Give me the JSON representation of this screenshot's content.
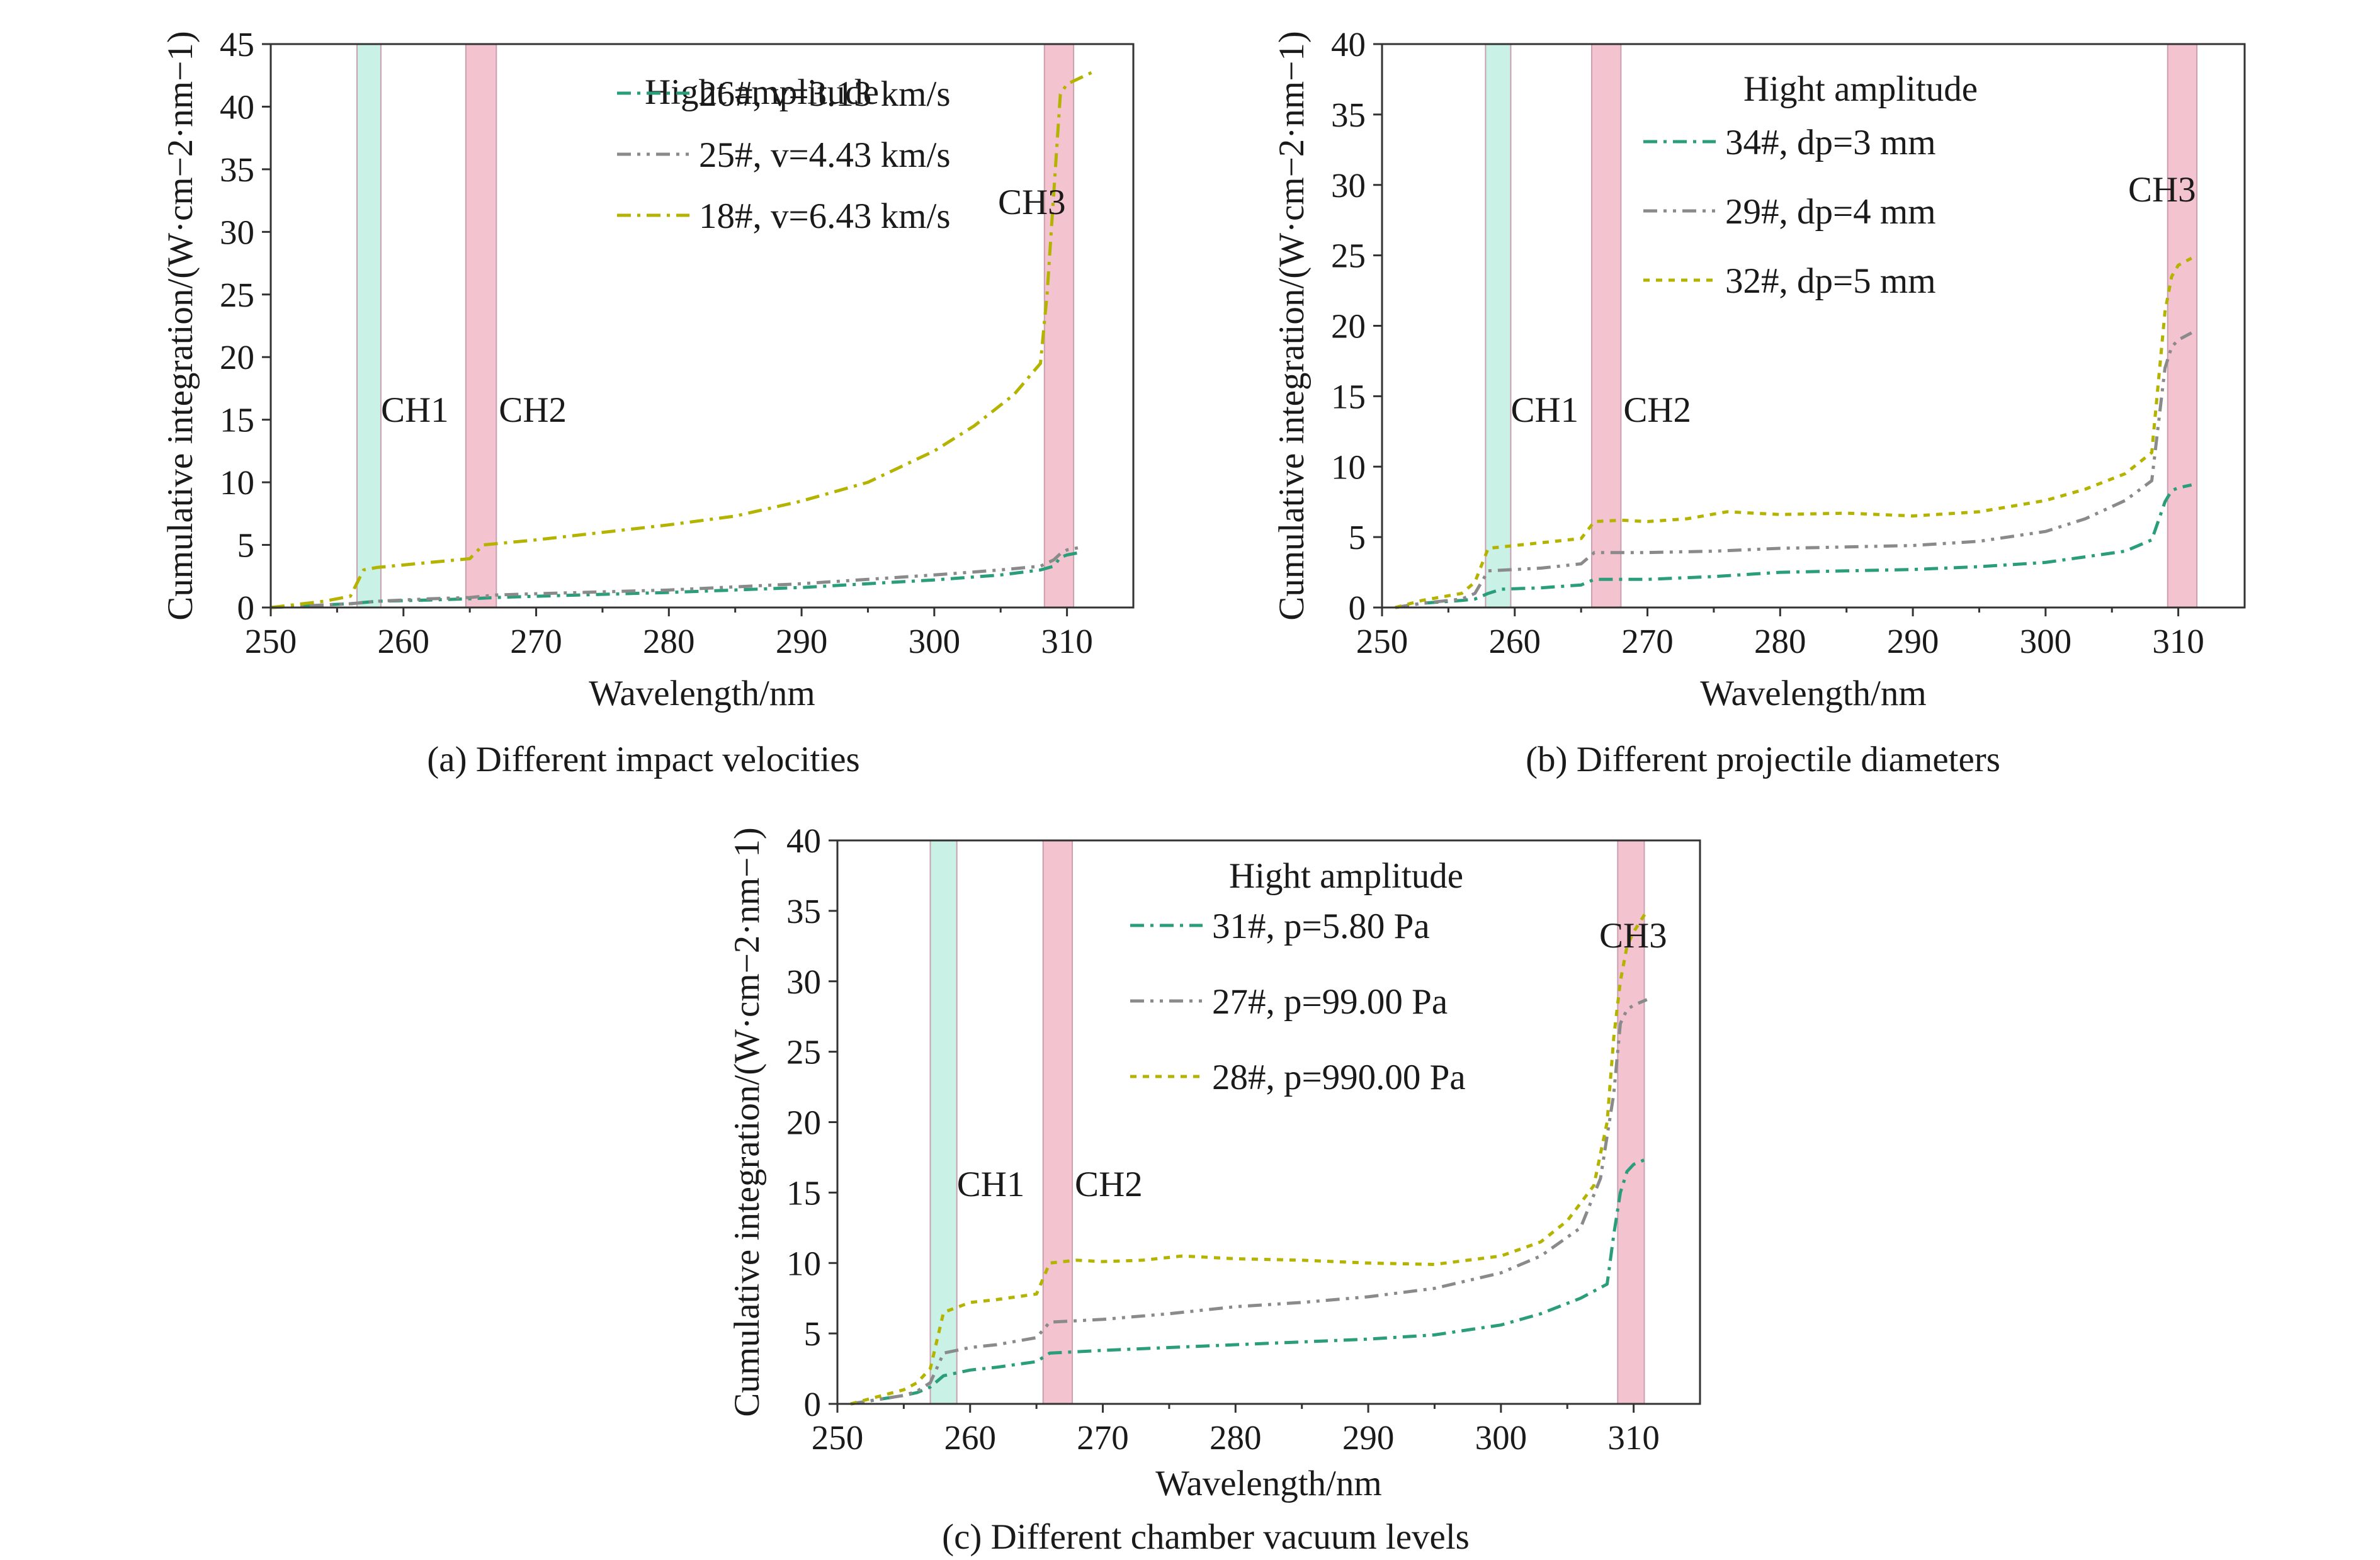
{
  "chart_data": [
    {
      "type": "line",
      "panel": "a",
      "caption": "(a) Different impact velocities",
      "xlabel": "Wavelength/nm",
      "ylabel": "Cumulative integration/(W·cm−2·nm−1)",
      "xlim": [
        250,
        315
      ],
      "ylim": [
        0,
        45
      ],
      "xticks": [
        250,
        260,
        270,
        280,
        290,
        300,
        310
      ],
      "yticks": [
        0,
        5,
        10,
        15,
        20,
        25,
        30,
        35,
        40,
        45
      ],
      "legend_title": "Hight amplitude",
      "bands": [
        {
          "label": "CH1",
          "x0": 256.5,
          "x1": 258.3,
          "color": "#bfeee0"
        },
        {
          "label": "CH2",
          "x0": 264.7,
          "x1": 267.0,
          "color": "#f2b8c8"
        },
        {
          "label": "CH3",
          "x0": 308.3,
          "x1": 310.5,
          "color": "#f2b8c8"
        }
      ],
      "series": [
        {
          "name": "26#, v=3.13 km/s",
          "color": "#2a9d7a",
          "dash": "22,10,5,10",
          "x": [
            250,
            256,
            258,
            262,
            265,
            267,
            270,
            280,
            290,
            300,
            305,
            308,
            309,
            309.5,
            310,
            311
          ],
          "y": [
            0,
            0.3,
            0.5,
            0.6,
            0.7,
            0.8,
            0.9,
            1.2,
            1.6,
            2.2,
            2.6,
            3.0,
            3.3,
            4.0,
            4.2,
            4.4
          ]
        },
        {
          "name": "25#, v=4.43 km/s",
          "color": "#8a8a8a",
          "dash": "22,10,5,10,5,10",
          "x": [
            250,
            256,
            258,
            262,
            265,
            267,
            270,
            280,
            290,
            300,
            305,
            308,
            309,
            309.5,
            310,
            311
          ],
          "y": [
            0,
            0.3,
            0.5,
            0.7,
            0.8,
            1.0,
            1.1,
            1.4,
            1.9,
            2.6,
            3.0,
            3.3,
            3.8,
            4.3,
            4.6,
            4.8
          ]
        },
        {
          "name": "18#, v=6.43 km/s",
          "color": "#b3b300",
          "dash": "22,10,5,10",
          "x": [
            250,
            254,
            256,
            257,
            258,
            262,
            265,
            266,
            270,
            275,
            280,
            285,
            290,
            295,
            300,
            303,
            306,
            308,
            308.5,
            309,
            309.5,
            310,
            311,
            312
          ],
          "y": [
            0,
            0.5,
            0.9,
            3.0,
            3.2,
            3.6,
            3.9,
            5.0,
            5.4,
            6.0,
            6.6,
            7.3,
            8.5,
            10.0,
            12.5,
            14.5,
            17.0,
            19.5,
            25.0,
            33.0,
            41.0,
            41.8,
            42.3,
            42.8
          ]
        }
      ]
    },
    {
      "type": "line",
      "panel": "b",
      "caption": "(b) Different projectile diameters",
      "xlabel": "Wavelength/nm",
      "ylabel": "Cumulative integration/(W·cm−2·nm−1)",
      "xlim": [
        250,
        315
      ],
      "ylim": [
        0,
        40
      ],
      "xticks": [
        250,
        260,
        270,
        280,
        290,
        300,
        310
      ],
      "yticks": [
        0,
        5,
        10,
        15,
        20,
        25,
        30,
        35,
        40
      ],
      "legend_title": "Hight amplitude",
      "bands": [
        {
          "label": "CH1",
          "x0": 257.8,
          "x1": 259.7,
          "color": "#bfeee0"
        },
        {
          "label": "CH2",
          "x0": 265.8,
          "x1": 268.0,
          "color": "#f2b8c8"
        },
        {
          "label": "CH3",
          "x0": 309.2,
          "x1": 311.4,
          "color": "#f2b8c8"
        }
      ],
      "series": [
        {
          "name": "34#, dp=3 mm",
          "color": "#2a9d7a",
          "dash": "22,10,5,10",
          "x": [
            251,
            253,
            256,
            257,
            258,
            259,
            262,
            265,
            266,
            268,
            270,
            275,
            280,
            285,
            290,
            295,
            300,
            303,
            306,
            308,
            309,
            309.5,
            310,
            311
          ],
          "y": [
            0,
            0.3,
            0.5,
            0.6,
            1.0,
            1.3,
            1.4,
            1.6,
            2.0,
            2.0,
            2.0,
            2.2,
            2.5,
            2.6,
            2.7,
            2.9,
            3.2,
            3.6,
            4.0,
            4.8,
            7.5,
            8.3,
            8.5,
            8.7
          ]
        },
        {
          "name": "29#, dp=4 mm",
          "color": "#8a8a8a",
          "dash": "22,10,5,10,5,10",
          "x": [
            251,
            253,
            256,
            257,
            258,
            260,
            262,
            265,
            266,
            268,
            270,
            275,
            280,
            285,
            290,
            295,
            300,
            303,
            306,
            308,
            308.5,
            309,
            309.5,
            310,
            311
          ],
          "y": [
            0,
            0.3,
            0.6,
            1.0,
            2.6,
            2.7,
            2.8,
            3.1,
            3.9,
            3.9,
            3.9,
            4.0,
            4.2,
            4.3,
            4.4,
            4.7,
            5.4,
            6.3,
            7.6,
            9.0,
            13.0,
            17.0,
            18.5,
            19.0,
            19.5
          ]
        },
        {
          "name": "32#, dp=5 mm",
          "color": "#b3b300",
          "dash": "10,10",
          "x": [
            251,
            253,
            256,
            257,
            258,
            260,
            262,
            265,
            266,
            268,
            270,
            273,
            276,
            280,
            285,
            290,
            295,
            300,
            303,
            306,
            308,
            308.5,
            309,
            309.5,
            310,
            311
          ],
          "y": [
            0,
            0.5,
            1.0,
            1.8,
            4.2,
            4.4,
            4.6,
            4.9,
            6.1,
            6.2,
            6.1,
            6.3,
            6.8,
            6.6,
            6.7,
            6.5,
            6.8,
            7.6,
            8.4,
            9.5,
            11.0,
            16.0,
            21.0,
            23.5,
            24.3,
            24.8
          ]
        }
      ]
    },
    {
      "type": "line",
      "panel": "c",
      "caption": "(c) Different chamber vacuum levels",
      "xlabel": "Wavelength/nm",
      "ylabel": "Cumulative integration/(W·cm−2·nm−1)",
      "xlim": [
        250,
        315
      ],
      "ylim": [
        0,
        40
      ],
      "xticks": [
        250,
        260,
        270,
        280,
        290,
        300,
        310
      ],
      "yticks": [
        0,
        5,
        10,
        15,
        20,
        25,
        30,
        35,
        40
      ],
      "legend_title": "Hight amplitude",
      "bands": [
        {
          "label": "CH1",
          "x0": 257.0,
          "x1": 259.0,
          "color": "#bfeee0"
        },
        {
          "label": "CH2",
          "x0": 265.5,
          "x1": 267.7,
          "color": "#f2b8c8"
        },
        {
          "label": "CH3",
          "x0": 308.8,
          "x1": 310.8,
          "color": "#f2b8c8"
        }
      ],
      "series": [
        {
          "name": "31#, p=5.80 Pa",
          "color": "#2a9d7a",
          "dash": "22,10,5,10",
          "x": [
            251,
            253,
            255,
            256,
            257,
            258,
            260,
            262,
            265,
            266,
            268,
            270,
            275,
            280,
            285,
            290,
            295,
            300,
            303,
            306,
            308,
            308.5,
            309,
            309.5,
            310,
            311
          ],
          "y": [
            0,
            0.3,
            0.6,
            0.8,
            1.2,
            2.0,
            2.4,
            2.6,
            3.0,
            3.6,
            3.7,
            3.8,
            4.0,
            4.2,
            4.4,
            4.6,
            4.9,
            5.6,
            6.4,
            7.5,
            8.5,
            12.0,
            15.0,
            16.5,
            17.0,
            17.4
          ]
        },
        {
          "name": "27#, p=99.00 Pa",
          "color": "#8a8a8a",
          "dash": "22,10,5,10,5,10",
          "x": [
            251,
            253,
            255,
            256,
            257,
            258,
            260,
            262,
            265,
            266,
            268,
            270,
            275,
            280,
            285,
            290,
            295,
            300,
            303,
            306,
            307.5,
            308.5,
            309,
            309.5,
            310,
            311
          ],
          "y": [
            0,
            0.3,
            0.6,
            0.9,
            1.5,
            3.6,
            4.0,
            4.2,
            4.7,
            5.8,
            5.9,
            6.0,
            6.4,
            6.9,
            7.2,
            7.6,
            8.2,
            9.3,
            10.5,
            12.5,
            16.0,
            22.0,
            27.0,
            28.0,
            28.3,
            28.7
          ]
        },
        {
          "name": "28#, p=990.00 Pa",
          "color": "#b3b300",
          "dash": "10,10",
          "x": [
            251,
            253,
            255,
            256,
            257,
            258,
            260,
            262,
            265,
            266,
            268,
            270,
            273,
            276,
            280,
            285,
            290,
            295,
            300,
            303,
            305,
            307,
            308,
            308.5,
            309,
            309.5,
            310,
            311
          ],
          "y": [
            0,
            0.5,
            1.0,
            1.5,
            2.5,
            6.5,
            7.2,
            7.4,
            7.8,
            10.0,
            10.2,
            10.1,
            10.2,
            10.5,
            10.3,
            10.2,
            10.0,
            9.9,
            10.5,
            11.5,
            13.0,
            15.5,
            20.0,
            26.0,
            30.0,
            32.5,
            33.5,
            35.0
          ]
        }
      ]
    }
  ]
}
